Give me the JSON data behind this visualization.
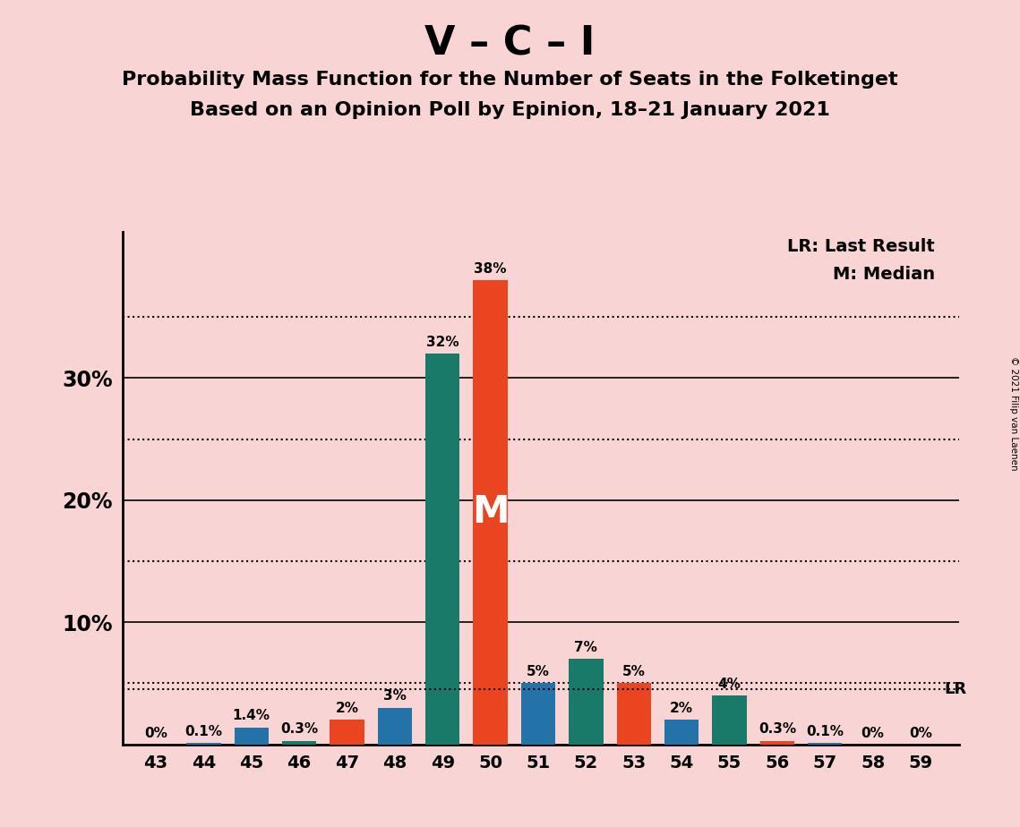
{
  "title_main": "V – C – I",
  "title_sub1": "Probability Mass Function for the Number of Seats in the Folketinget",
  "title_sub2": "Based on an Opinion Poll by Epinion, 18–21 January 2021",
  "copyright_text": "© 2021 Filip van Laenen",
  "seats": [
    43,
    44,
    45,
    46,
    47,
    48,
    49,
    50,
    51,
    52,
    53,
    54,
    55,
    56,
    57,
    58,
    59
  ],
  "values": [
    0.0,
    0.1,
    1.4,
    0.3,
    2.0,
    3.0,
    32.0,
    38.0,
    5.0,
    7.0,
    5.0,
    2.0,
    4.0,
    0.3,
    0.1,
    0.0,
    0.0
  ],
  "labels": [
    "0%",
    "0.1%",
    "1.4%",
    "0.3%",
    "2%",
    "3%",
    "32%",
    "38%",
    "5%",
    "7%",
    "5%",
    "2%",
    "4%",
    "0.3%",
    "0.1%",
    "0%",
    "0%"
  ],
  "colors": [
    "#2473a8",
    "#2473a8",
    "#2473a8",
    "#1a7a6a",
    "#e84520",
    "#2473a8",
    "#1a7a6a",
    "#e84520",
    "#2473a8",
    "#1a7a6a",
    "#e84520",
    "#2473a8",
    "#1a7a6a",
    "#e84520",
    "#2473a8",
    "#2473a8",
    "#2473a8"
  ],
  "median_seat_index": 7,
  "median_seat": 50,
  "lr_value": 4.5,
  "background_color": "#f9d4d4",
  "ylim_max": 42,
  "solid_grid": [
    10,
    20,
    30
  ],
  "dotted_grid": [
    5,
    15,
    25,
    35
  ],
  "lr_label": "LR",
  "median_label": "M",
  "legend_lr": "LR: Last Result",
  "legend_m": "M: Median"
}
